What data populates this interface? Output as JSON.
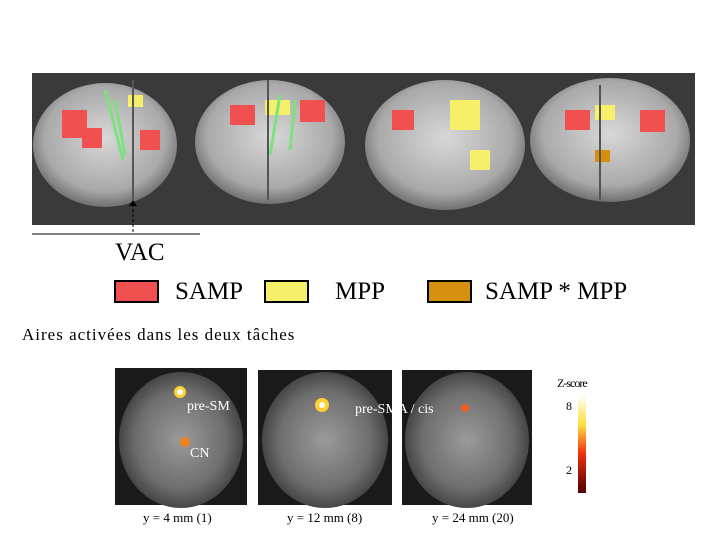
{
  "top_panel": {
    "marker_label": "VAC"
  },
  "legend": [
    {
      "label": "SAMP",
      "color": "#f05050"
    },
    {
      "label": "MPP",
      "color": "#f6ef6a"
    },
    {
      "label": "SAMP * MPP",
      "color": "#d4900e"
    }
  ],
  "section_title": "Aires activées dans les deux tâches",
  "slices": [
    {
      "caption": "y = 4 mm (1)",
      "annotations": [
        "pre-SM",
        "CN"
      ]
    },
    {
      "caption": "y = 12 mm (8)",
      "annotations": [
        "pre-SMA / cis"
      ]
    },
    {
      "caption": "y = 24 mm (20)",
      "annotations": []
    }
  ],
  "colorbar": {
    "title": "Z-score",
    "top_label": "8",
    "bottom_label": "2"
  }
}
